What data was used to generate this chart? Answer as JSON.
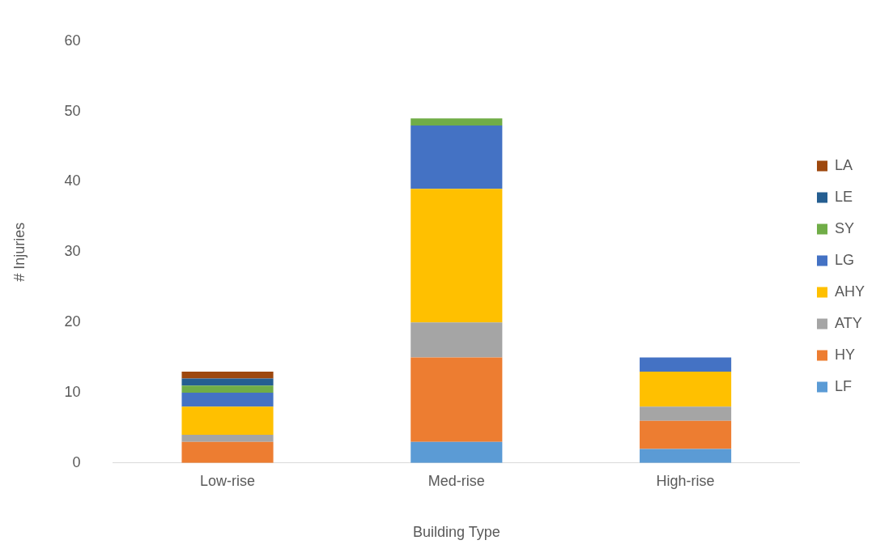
{
  "chart_data": {
    "type": "bar",
    "stacked": true,
    "xlabel": "Building Type",
    "ylabel": "# Injuries",
    "categories": [
      "Low-rise",
      "Med-rise",
      "High-rise"
    ],
    "series": [
      {
        "name": "LF",
        "color": "#5b9bd5",
        "values": [
          0,
          3,
          2
        ]
      },
      {
        "name": "HY",
        "color": "#ed7d31",
        "values": [
          3,
          12,
          4
        ]
      },
      {
        "name": "ATY",
        "color": "#a5a5a5",
        "values": [
          1,
          5,
          2
        ]
      },
      {
        "name": "AHY",
        "color": "#ffc000",
        "values": [
          4,
          19,
          5
        ]
      },
      {
        "name": "LG",
        "color": "#4472c4",
        "values": [
          2,
          9,
          2
        ]
      },
      {
        "name": "SY",
        "color": "#70ad47",
        "values": [
          1,
          1,
          0
        ]
      },
      {
        "name": "LE",
        "color": "#255e91",
        "values": [
          1,
          0,
          0
        ]
      },
      {
        "name": "LA",
        "color": "#9e480e",
        "values": [
          1,
          0,
          0
        ]
      }
    ],
    "ylim": [
      0,
      60
    ],
    "yticks": [
      0,
      10,
      20,
      30,
      40,
      50,
      60
    ],
    "grid": false,
    "legend": "right"
  }
}
